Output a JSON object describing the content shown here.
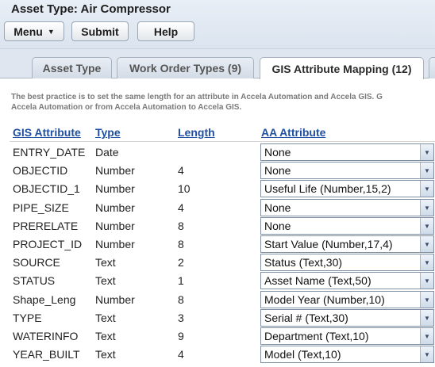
{
  "header": {
    "title": "Asset Type: Air Compressor",
    "menu_label": "Menu",
    "submit_label": "Submit",
    "help_label": "Help"
  },
  "tabs": [
    {
      "label": "Asset Type"
    },
    {
      "label": "Work Order Types (9)"
    },
    {
      "label": "GIS Attribute Mapping (12)",
      "active": true
    }
  ],
  "note": {
    "line1": "The best practice is to set the same length for an attribute in Accela Automation and Accela GIS. G",
    "line2": "Accela Automation or from Accela Automation to Accela GIS."
  },
  "columns": {
    "gis": "GIS Attribute",
    "type": "Type",
    "length": "Length",
    "aa": "AA Attribute"
  },
  "rows": [
    {
      "gis": "ENTRY_DATE",
      "type": "Date",
      "length": "",
      "aa": "None"
    },
    {
      "gis": "OBJECTID",
      "type": "Number",
      "length": "4",
      "aa": "None"
    },
    {
      "gis": "OBJECTID_1",
      "type": "Number",
      "length": "10",
      "aa": "Useful Life (Number,15,2)"
    },
    {
      "gis": "PIPE_SIZE",
      "type": "Number",
      "length": "4",
      "aa": "None"
    },
    {
      "gis": "PRERELATE",
      "type": "Number",
      "length": "8",
      "aa": "None"
    },
    {
      "gis": "PROJECT_ID",
      "type": "Number",
      "length": "8",
      "aa": "Start Value (Number,17,4)"
    },
    {
      "gis": "SOURCE",
      "type": "Text",
      "length": "2",
      "aa": "Status (Text,30)"
    },
    {
      "gis": "STATUS",
      "type": "Text",
      "length": "1",
      "aa": "Asset Name (Text,50)"
    },
    {
      "gis": "Shape_Leng",
      "type": "Number",
      "length": "8",
      "aa": "Model Year (Number,10)"
    },
    {
      "gis": "TYPE",
      "type": "Text",
      "length": "3",
      "aa": "Serial # (Text,30)"
    },
    {
      "gis": "WATERINFO",
      "type": "Text",
      "length": "9",
      "aa": "Department (Text,10)"
    },
    {
      "gis": "YEAR_BUILT",
      "type": "Text",
      "length": "4",
      "aa": "Model (Text,10)"
    }
  ]
}
